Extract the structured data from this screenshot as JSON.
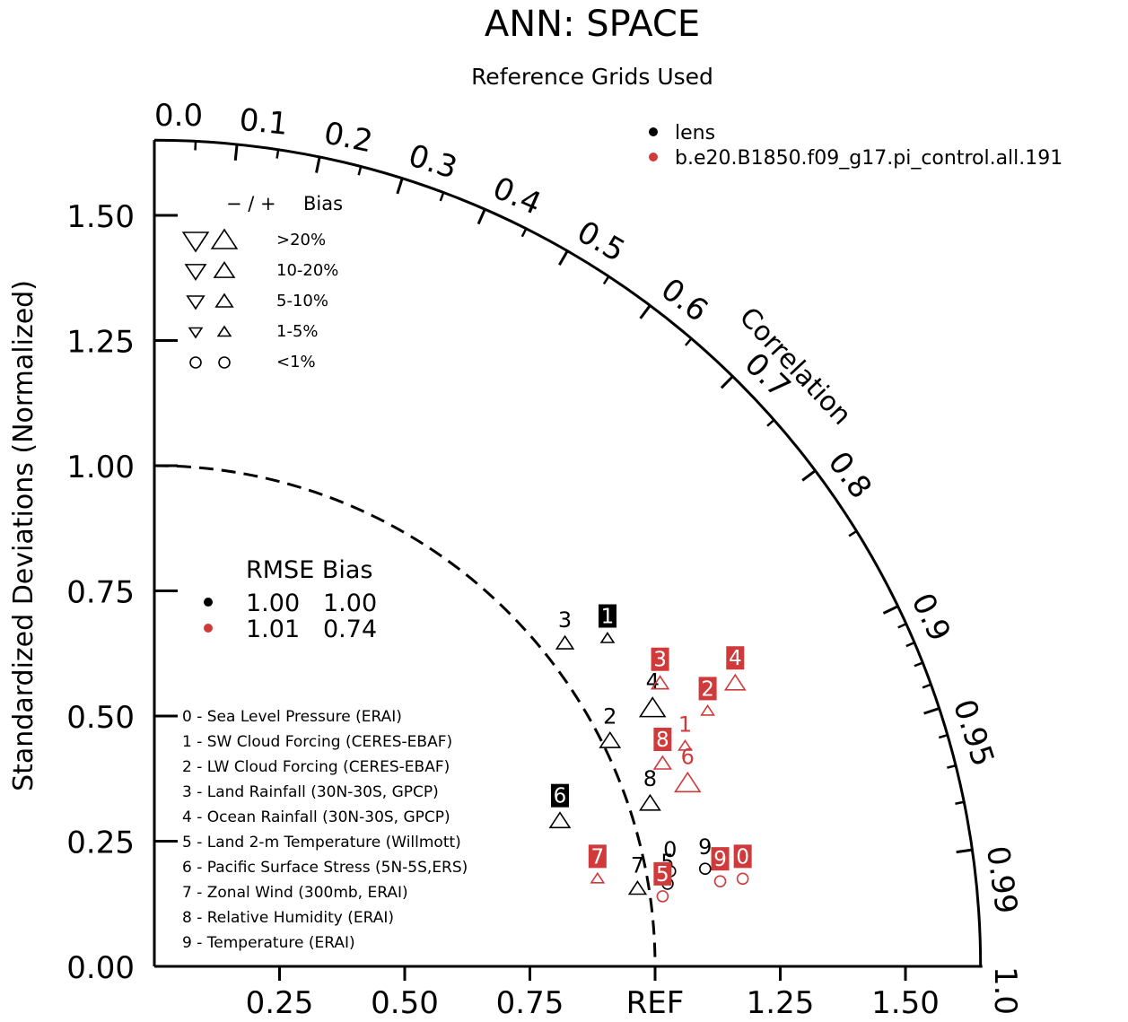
{
  "title": "ANN: SPACE",
  "subtitle": "Reference Grids Used",
  "ylabel": "Standardized Deviations (Normalized)",
  "correlation_label": "Correlation",
  "colors": {
    "model_a": "#000000",
    "model_b": "#d03a3a",
    "axis": "#000000"
  },
  "case_legend": [
    {
      "label": "lens",
      "color": "#000000"
    },
    {
      "label": "b.e20.B1850.f09_g17.pi_control.all.191",
      "color": "#d03a3a"
    }
  ],
  "bias_legend": {
    "header_sign": "− / +",
    "header_bias": "Bias",
    "rows": [
      {
        "label": ">20%",
        "shape": "triangle",
        "size": 4
      },
      {
        "label": "10-20%",
        "shape": "triangle",
        "size": 3
      },
      {
        "label": "5-10%",
        "shape": "triangle",
        "size": 2
      },
      {
        "label": "1-5%",
        "shape": "triangle",
        "size": 1
      },
      {
        "label": "<1%",
        "shape": "circle",
        "size": 1
      }
    ]
  },
  "rmse_table": {
    "header": "RMSE Bias",
    "rows": [
      {
        "color": "#000000",
        "rmse": "1.00",
        "bias": "1.00"
      },
      {
        "color": "#d03a3a",
        "rmse": "1.01",
        "bias": "0.74"
      }
    ]
  },
  "variables": [
    "0 - Sea Level Pressure (ERAI)",
    "1 - SW Cloud Forcing (CERES-EBAF)",
    "2 - LW Cloud Forcing (CERES-EBAF)",
    "3 - Land Rainfall (30N-30S, GPCP)",
    "4 - Ocean Rainfall (30N-30S, GPCP)",
    "5 - Land 2-m Temperature (Willmott)",
    "6 - Pacific Surface Stress (5N-5S,ERS)",
    "7 - Zonal Wind (300mb, ERAI)",
    "8 - Relative Humidity (ERAI)",
    "9 - Temperature (ERAI)"
  ],
  "chart_data": {
    "type": "scatter",
    "subtype": "taylor_diagram",
    "title": "ANN: SPACE",
    "subtitle": "Reference Grids Used",
    "ylabel": "Standardized Deviations (Normalized)",
    "xlim": [
      0,
      1.65
    ],
    "ylim": [
      0,
      1.65
    ],
    "radius_max": 1.65,
    "reference_radius": 1.0,
    "x_ticks": [
      {
        "value": 0.25,
        "label": "0.25"
      },
      {
        "value": 0.5,
        "label": "0.50"
      },
      {
        "value": 0.75,
        "label": "0.75"
      },
      {
        "value": 1.0,
        "label": "REF"
      },
      {
        "value": 1.25,
        "label": "1.25"
      },
      {
        "value": 1.5,
        "label": "1.50"
      }
    ],
    "y_ticks": [
      {
        "value": 0.0,
        "label": "0.00"
      },
      {
        "value": 0.25,
        "label": "0.25"
      },
      {
        "value": 0.5,
        "label": "0.50"
      },
      {
        "value": 0.75,
        "label": "0.75"
      },
      {
        "value": 1.0,
        "label": "1.00"
      },
      {
        "value": 1.25,
        "label": "1.25"
      },
      {
        "value": 1.5,
        "label": "1.50"
      }
    ],
    "correlation_major": [
      {
        "value": 0.0,
        "label": "0.0"
      },
      {
        "value": 0.1,
        "label": "0.1"
      },
      {
        "value": 0.2,
        "label": "0.2"
      },
      {
        "value": 0.3,
        "label": "0.3"
      },
      {
        "value": 0.4,
        "label": "0.4"
      },
      {
        "value": 0.5,
        "label": "0.5"
      },
      {
        "value": 0.6,
        "label": "0.6"
      },
      {
        "value": 0.7,
        "label": "0.7"
      },
      {
        "value": 0.8,
        "label": "0.8"
      },
      {
        "value": 0.9,
        "label": "0.9"
      },
      {
        "value": 0.95,
        "label": "0.95"
      },
      {
        "value": 0.99,
        "label": "0.99"
      },
      {
        "value": 1.0,
        "label": "1.0"
      }
    ],
    "correlation_minor": [
      0.05,
      0.15,
      0.25,
      0.35,
      0.45,
      0.55,
      0.65,
      0.75,
      0.85,
      0.91,
      0.92,
      0.93,
      0.94,
      0.96,
      0.97,
      0.98
    ],
    "series": [
      {
        "name": "lens",
        "color": "#000000",
        "points": [
          {
            "id": "0",
            "x": 1.03,
            "y": 0.19,
            "marker": "circle",
            "size": 1,
            "boxed": false
          },
          {
            "id": "1",
            "x": 0.905,
            "y": 0.655,
            "marker": "triangle",
            "size": 1,
            "boxed": true
          },
          {
            "id": "2",
            "x": 0.91,
            "y": 0.45,
            "marker": "triangle",
            "size": 3,
            "boxed": false
          },
          {
            "id": "3",
            "x": 0.82,
            "y": 0.645,
            "marker": "triangle",
            "size": 2,
            "boxed": false
          },
          {
            "id": "4",
            "x": 0.995,
            "y": 0.515,
            "marker": "triangle",
            "size": 4,
            "boxed": false
          },
          {
            "id": "5",
            "x": 1.025,
            "y": 0.165,
            "marker": "circle",
            "size": 1,
            "boxed": false
          },
          {
            "id": "6",
            "x": 0.81,
            "y": 0.29,
            "marker": "triangle",
            "size": 3,
            "boxed": true
          },
          {
            "id": "7",
            "x": 0.965,
            "y": 0.155,
            "marker": "triangle",
            "size": 2,
            "boxed": false
          },
          {
            "id": "8",
            "x": 0.99,
            "y": 0.325,
            "marker": "triangle",
            "size": 3,
            "boxed": false
          },
          {
            "id": "9",
            "x": 1.1,
            "y": 0.195,
            "marker": "circle",
            "size": 1,
            "boxed": false
          }
        ]
      },
      {
        "name": "b.e20.B1850.f09_g17.pi_control.all.191",
        "color": "#d03a3a",
        "points": [
          {
            "id": "0",
            "x": 1.175,
            "y": 0.175,
            "marker": "circle",
            "size": 1,
            "boxed": true
          },
          {
            "id": "1",
            "x": 1.06,
            "y": 0.44,
            "marker": "triangle",
            "size": 1,
            "boxed": false
          },
          {
            "id": "2",
            "x": 1.105,
            "y": 0.51,
            "marker": "triangle",
            "size": 1,
            "boxed": true
          },
          {
            "id": "3",
            "x": 1.01,
            "y": 0.565,
            "marker": "triangle",
            "size": 2,
            "boxed": true
          },
          {
            "id": "4",
            "x": 1.16,
            "y": 0.565,
            "marker": "triangle",
            "size": 3,
            "boxed": true
          },
          {
            "id": "5",
            "x": 1.015,
            "y": 0.14,
            "marker": "circle",
            "size": 1,
            "boxed": true
          },
          {
            "id": "6",
            "x": 1.065,
            "y": 0.365,
            "marker": "triangle",
            "size": 4,
            "boxed": false
          },
          {
            "id": "7",
            "x": 0.885,
            "y": 0.175,
            "marker": "triangle",
            "size": 1,
            "boxed": true
          },
          {
            "id": "8",
            "x": 1.015,
            "y": 0.405,
            "marker": "triangle",
            "size": 2,
            "boxed": true
          },
          {
            "id": "9",
            "x": 1.13,
            "y": 0.17,
            "marker": "circle",
            "size": 1,
            "boxed": true
          }
        ]
      }
    ]
  }
}
